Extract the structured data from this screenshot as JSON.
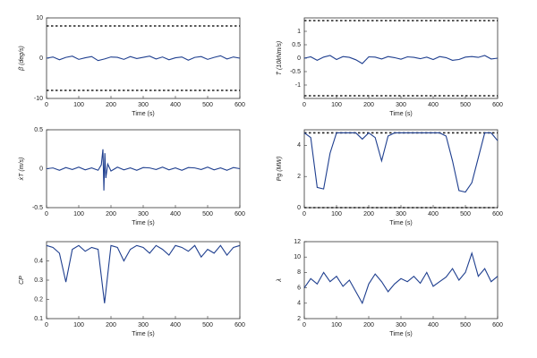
{
  "chart_data": [
    {
      "type": "line",
      "ylabel": "β̇ (deg/s)",
      "xlabel": "Time (s)",
      "color": "#1f3f8f",
      "x": [
        0,
        20,
        40,
        60,
        80,
        100,
        120,
        140,
        160,
        180,
        200,
        220,
        240,
        260,
        280,
        300,
        320,
        340,
        360,
        380,
        400,
        420,
        440,
        460,
        480,
        500,
        520,
        540,
        560,
        580,
        600
      ],
      "values": [
        0,
        0.3,
        -0.4,
        0.2,
        0.5,
        -0.3,
        0.1,
        0.4,
        -0.6,
        -0.2,
        0.3,
        0.2,
        -0.3,
        0.4,
        -0.1,
        0.2,
        0.5,
        -0.2,
        0.3,
        -0.4,
        0.1,
        0.3,
        -0.5,
        0.2,
        0.4,
        -0.3,
        0.2,
        0.6,
        -0.2,
        0.3,
        0
      ],
      "hlines": [
        8,
        -8
      ],
      "xlim": [
        0,
        600
      ],
      "xticks": [
        0,
        100,
        200,
        300,
        400,
        500,
        600
      ],
      "ylim": [
        -10,
        10
      ],
      "yticks": [
        -10,
        0,
        10
      ]
    },
    {
      "type": "line",
      "ylabel": "Ṫ (10kNm/s)",
      "xlabel": "Time (s)",
      "color": "#1f3f8f",
      "x": [
        0,
        20,
        40,
        60,
        80,
        100,
        120,
        140,
        160,
        180,
        200,
        220,
        240,
        260,
        280,
        300,
        320,
        340,
        360,
        380,
        400,
        420,
        440,
        460,
        480,
        500,
        520,
        540,
        560,
        580,
        600
      ],
      "values": [
        0,
        0.05,
        -0.08,
        0.04,
        0.1,
        -0.05,
        0.06,
        0.03,
        -0.06,
        -0.2,
        0.05,
        0.04,
        -0.03,
        0.06,
        0.02,
        -0.04,
        0.05,
        0.03,
        -0.02,
        0.04,
        -0.05,
        0.06,
        0.02,
        -0.08,
        -0.05,
        0.04,
        0.06,
        0.03,
        0.1,
        -0.03,
        0
      ],
      "hlines": [
        1.4,
        -1.4
      ],
      "xlim": [
        0,
        600
      ],
      "xticks": [
        0,
        100,
        200,
        300,
        400,
        500,
        600
      ],
      "ylim": [
        -1.5,
        1.5
      ],
      "yticks": [
        -1,
        -0.5,
        0,
        0.5,
        1
      ]
    },
    {
      "type": "line",
      "ylabel": "ẋT (m/s)",
      "xlabel": "Time (s)",
      "color": "#1f3f8f",
      "x": [
        0,
        20,
        40,
        60,
        80,
        100,
        120,
        140,
        160,
        170,
        175,
        178,
        181,
        184,
        190,
        200,
        220,
        240,
        260,
        280,
        300,
        320,
        340,
        360,
        380,
        400,
        420,
        440,
        460,
        480,
        500,
        520,
        540,
        560,
        580,
        600
      ],
      "values": [
        0,
        0.01,
        -0.02,
        0.015,
        -0.01,
        0.02,
        -0.015,
        0.01,
        -0.02,
        0.05,
        0.25,
        -0.28,
        0.2,
        -0.12,
        0.06,
        -0.03,
        0.02,
        -0.015,
        0.01,
        -0.02,
        0.015,
        0.01,
        -0.01,
        0.02,
        -0.015,
        0.01,
        -0.02,
        0.015,
        0.01,
        -0.01,
        0.02,
        -0.015,
        0.01,
        -0.02,
        0.015,
        0
      ],
      "xlim": [
        0,
        600
      ],
      "xticks": [
        0,
        100,
        200,
        300,
        400,
        500,
        600
      ],
      "ylim": [
        -0.5,
        0.5
      ],
      "yticks": [
        -0.5,
        0,
        0.5
      ]
    },
    {
      "type": "line",
      "ylabel": "Pg (MW)",
      "xlabel": "Time (s)",
      "color": "#1f3f8f",
      "x": [
        0,
        20,
        40,
        60,
        80,
        100,
        120,
        140,
        160,
        180,
        200,
        220,
        240,
        260,
        280,
        300,
        320,
        340,
        360,
        380,
        400,
        420,
        440,
        460,
        480,
        500,
        520,
        540,
        560,
        580,
        600
      ],
      "values": [
        4.8,
        4.5,
        1.3,
        1.2,
        3.5,
        4.8,
        4.8,
        4.8,
        4.8,
        4.4,
        4.8,
        4.5,
        3.0,
        4.6,
        4.8,
        4.8,
        4.8,
        4.8,
        4.8,
        4.8,
        4.8,
        4.8,
        4.6,
        3.0,
        1.1,
        1.0,
        1.6,
        3.2,
        4.8,
        4.8,
        4.3
      ],
      "hlines": [
        4.8,
        0
      ],
      "xlim": [
        0,
        600
      ],
      "xticks": [
        0,
        100,
        200,
        300,
        400,
        500,
        600
      ],
      "ylim": [
        0,
        5
      ],
      "yticks": [
        0,
        2,
        4
      ]
    },
    {
      "type": "line",
      "ylabel": "CP",
      "xlabel": "Time (s)",
      "color": "#1f3f8f",
      "x": [
        0,
        20,
        40,
        60,
        80,
        100,
        120,
        140,
        160,
        180,
        200,
        220,
        240,
        260,
        280,
        300,
        320,
        340,
        360,
        380,
        400,
        420,
        440,
        460,
        480,
        500,
        520,
        540,
        560,
        580,
        600
      ],
      "values": [
        0.48,
        0.47,
        0.44,
        0.29,
        0.46,
        0.48,
        0.45,
        0.47,
        0.46,
        0.18,
        0.48,
        0.47,
        0.4,
        0.46,
        0.48,
        0.47,
        0.44,
        0.48,
        0.46,
        0.43,
        0.48,
        0.47,
        0.45,
        0.48,
        0.42,
        0.46,
        0.44,
        0.48,
        0.43,
        0.47,
        0.48
      ],
      "xlim": [
        0,
        600
      ],
      "xticks": [
        0,
        100,
        200,
        300,
        400,
        500,
        600
      ],
      "ylim": [
        0.1,
        0.5
      ],
      "yticks": [
        0.1,
        0.2,
        0.3,
        0.4
      ]
    },
    {
      "type": "line",
      "ylabel": "λ",
      "xlabel": "Time (s)",
      "color": "#1f3f8f",
      "x": [
        0,
        20,
        40,
        60,
        80,
        100,
        120,
        140,
        160,
        180,
        200,
        220,
        240,
        260,
        280,
        300,
        320,
        340,
        360,
        380,
        400,
        420,
        440,
        460,
        480,
        500,
        520,
        540,
        560,
        580,
        600
      ],
      "values": [
        6,
        7.2,
        6.5,
        8,
        6.8,
        7.5,
        6.2,
        7,
        5.5,
        4,
        6.5,
        7.8,
        6.8,
        5.5,
        6.5,
        7.2,
        6.8,
        7.5,
        6.6,
        8,
        6.2,
        6.8,
        7.4,
        8.5,
        7,
        8,
        10.5,
        7.5,
        8.5,
        6.8,
        7.5
      ],
      "xlim": [
        0,
        600
      ],
      "xticks": [
        0,
        100,
        200,
        300,
        400,
        500,
        600
      ],
      "ylim": [
        2,
        12
      ],
      "yticks": [
        2,
        4,
        6,
        8,
        10,
        12
      ]
    }
  ]
}
